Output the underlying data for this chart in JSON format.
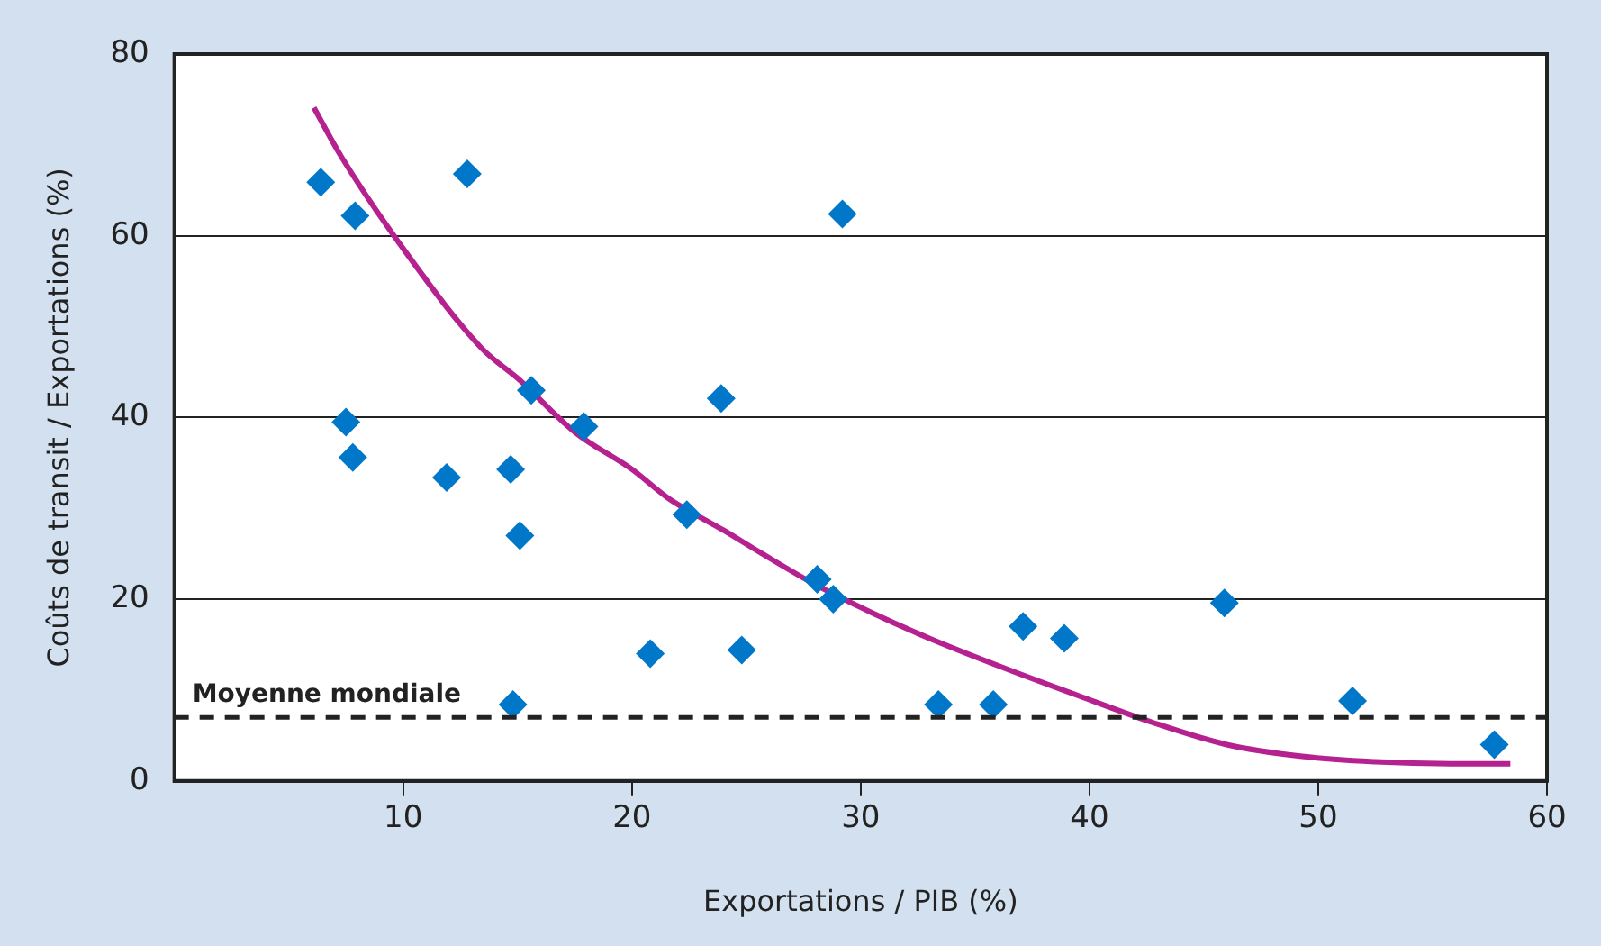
{
  "chart_data": {
    "type": "scatter",
    "xlabel": "Exportations / PIB (%)",
    "ylabel": "Coûts de transit / Exportations (%)",
    "xlim": [
      0,
      60
    ],
    "xticks": [
      10,
      20,
      30,
      40,
      50,
      60
    ],
    "ylim": [
      0,
      80
    ],
    "yticks": [
      0,
      20,
      40,
      60,
      80
    ],
    "grid": "y",
    "legend": false,
    "marker": "diamond",
    "series": [
      {
        "type": "scatter",
        "color": "#0077c8",
        "x": [
          6.4,
          7.9,
          12.8,
          29.2,
          7.5,
          7.8,
          11.9,
          14.7,
          15.1,
          15.6,
          17.9,
          23.9,
          22.4,
          28.1,
          28.8,
          20.8,
          24.8,
          14.8,
          33.4,
          35.8,
          37.1,
          38.9,
          45.9,
          51.5,
          57.7
        ],
        "values": [
          65.9,
          62.2,
          66.8,
          62.4,
          39.5,
          35.6,
          33.4,
          34.3,
          27,
          43,
          39,
          42.1,
          29.3,
          22.2,
          20,
          14,
          14.4,
          8.4,
          8.4,
          8.4,
          17,
          15.7,
          19.6,
          8.8,
          4
        ]
      },
      {
        "type": "line",
        "color": "#b5218f",
        "marker": "none",
        "line_style": "solid",
        "x": [
          6.1,
          7.3,
          10.2,
          13.4,
          15.1,
          17.5,
          20,
          21.6,
          24,
          25.7,
          28.1,
          30.5,
          33,
          36.2,
          39.5,
          42.8,
          46,
          49.3,
          52.5,
          55.8,
          58.4
        ],
        "values": [
          74.1,
          68.7,
          57.9,
          47.7,
          44.1,
          38.4,
          34.3,
          31.1,
          27.6,
          25,
          21.5,
          18.5,
          15.7,
          12.5,
          9.4,
          6.4,
          4,
          2.7,
          2.1,
          1.9,
          1.9
        ]
      }
    ],
    "ref_lines": [
      {
        "axis": "y",
        "value": 7,
        "label": "Moyenne mondiale",
        "color": "#222222",
        "line_style": "dashed"
      }
    ]
  }
}
